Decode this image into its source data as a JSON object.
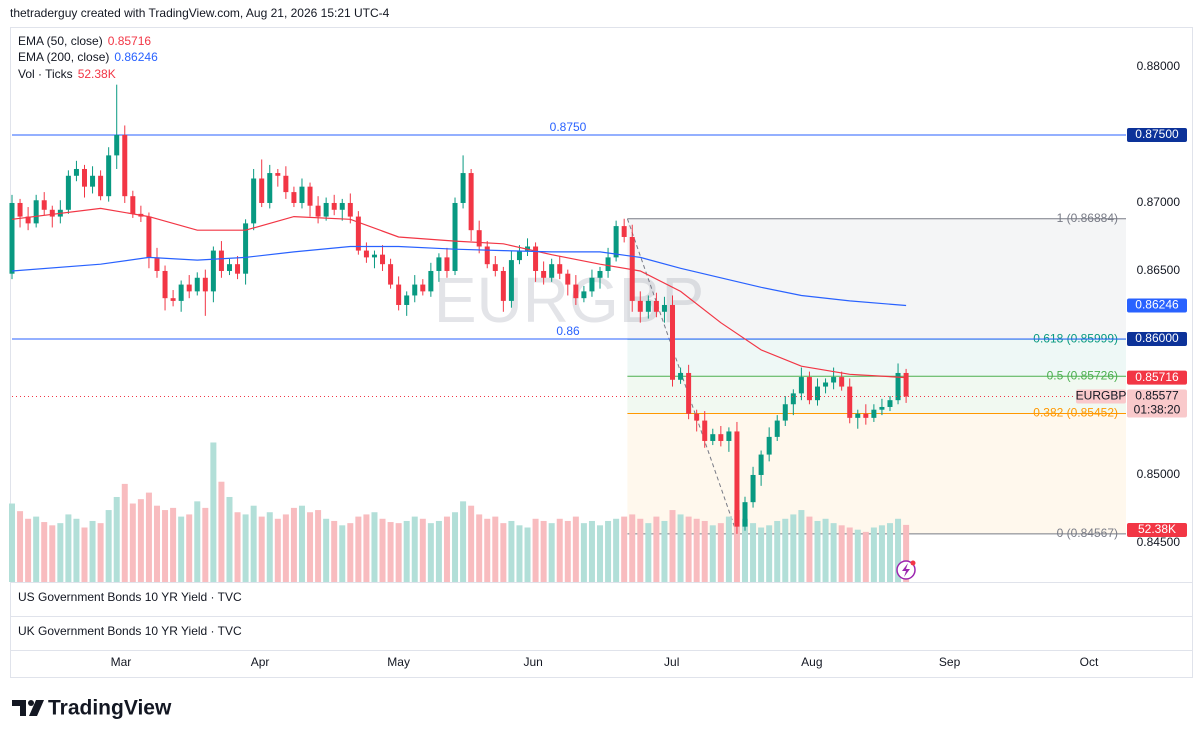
{
  "header": {
    "text": "thetraderguy created with TradingView.com, Aug 21, 2026 15:21 UTC-4"
  },
  "chart_data": {
    "type": "candlestick",
    "symbol": "EURGBP",
    "countdown": "01:38:20",
    "up_color": "#089981",
    "down_color": "#f23645",
    "xlim": [
      0,
      138.3
    ],
    "xticks": [
      {
        "value": 13.53,
        "label": "Mar"
      },
      {
        "value": 30.8,
        "label": "Apr"
      },
      {
        "value": 48.0,
        "label": "May"
      },
      {
        "value": 64.7,
        "label": "Jun"
      },
      {
        "value": 81.9,
        "label": "Jul"
      },
      {
        "value": 99.3,
        "label": "Aug"
      },
      {
        "value": 116.4,
        "label": "Sep"
      },
      {
        "value": 133.7,
        "label": "Oct"
      }
    ],
    "ylim": [
      0.84213,
      0.88294
    ],
    "yticks": [
      {
        "value": 0.88,
        "label": "0.88000"
      },
      {
        "value": 0.87,
        "label": "0.87000"
      },
      {
        "value": 0.865,
        "label": "0.86500"
      },
      {
        "value": 0.85,
        "label": "0.85000"
      },
      {
        "value": 0.845,
        "label": "0.84500"
      }
    ],
    "open": [
      0.8648,
      0.87,
      0.869,
      0.8685,
      0.8702,
      0.8695,
      0.869,
      0.8695,
      0.872,
      0.8725,
      0.8712,
      0.872,
      0.8705,
      0.8735,
      0.875,
      0.8705,
      0.8692,
      0.869,
      0.866,
      0.865,
      0.863,
      0.8628,
      0.864,
      0.8635,
      0.8645,
      0.8635,
      0.8665,
      0.865,
      0.8655,
      0.8648,
      0.8685,
      0.8718,
      0.87,
      0.8722,
      0.872,
      0.8708,
      0.87,
      0.8712,
      0.8698,
      0.869,
      0.87,
      0.8695,
      0.87,
      0.869,
      0.8665,
      0.866,
      0.8662,
      0.8655,
      0.864,
      0.8625,
      0.8632,
      0.864,
      0.8635,
      0.865,
      0.866,
      0.865,
      0.87,
      0.8722,
      0.868,
      0.8668,
      0.8655,
      0.865,
      0.8628,
      0.8658,
      0.8665,
      0.8668,
      0.865,
      0.8645,
      0.8655,
      0.8648,
      0.864,
      0.863,
      0.8635,
      0.8645,
      0.865,
      0.866,
      0.8683,
      0.8675,
      0.8628,
      0.862,
      0.8628,
      0.862,
      0.8625,
      0.857,
      0.8575,
      0.8545,
      0.854,
      0.8525,
      0.853,
      0.8525,
      0.8532,
      0.8462,
      0.848,
      0.85,
      0.8515,
      0.8528,
      0.854,
      0.8552,
      0.856,
      0.8572,
      0.8555,
      0.8565,
      0.8568,
      0.8572,
      0.8565,
      0.8542,
      0.8545,
      0.8542,
      0.8548,
      0.855,
      0.8555,
      0.8575
    ],
    "high": [
      0.8706,
      0.8703,
      0.8697,
      0.8706,
      0.8708,
      0.8698,
      0.8702,
      0.8724,
      0.8731,
      0.8728,
      0.8727,
      0.8724,
      0.8741,
      0.8787,
      0.8757,
      0.8709,
      0.8698,
      0.8693,
      0.8667,
      0.8654,
      0.8636,
      0.8643,
      0.8647,
      0.8649,
      0.8651,
      0.8668,
      0.8672,
      0.8659,
      0.8661,
      0.8688,
      0.8725,
      0.8732,
      0.8728,
      0.8725,
      0.8727,
      0.8712,
      0.8718,
      0.8715,
      0.8705,
      0.8704,
      0.8706,
      0.8703,
      0.8707,
      0.8694,
      0.8671,
      0.8665,
      0.8669,
      0.8659,
      0.8646,
      0.8635,
      0.8647,
      0.8644,
      0.8656,
      0.8663,
      0.8667,
      0.8704,
      0.8735,
      0.8725,
      0.8687,
      0.8672,
      0.8661,
      0.8653,
      0.8665,
      0.8669,
      0.8674,
      0.8671,
      0.8657,
      0.8659,
      0.8661,
      0.8651,
      0.8647,
      0.8639,
      0.8651,
      0.8653,
      0.8667,
      0.8687,
      0.86884,
      0.8684,
      0.8635,
      0.8632,
      0.8634,
      0.8631,
      0.8632,
      0.8579,
      0.8581,
      0.8548,
      0.8547,
      0.8534,
      0.8536,
      0.8535,
      0.8539,
      0.8484,
      0.8506,
      0.8518,
      0.8535,
      0.8544,
      0.8558,
      0.8563,
      0.8579,
      0.8576,
      0.8571,
      0.8571,
      0.8579,
      0.8576,
      0.8571,
      0.8548,
      0.8552,
      0.8552,
      0.8556,
      0.8558,
      0.8582,
      0.8578
    ],
    "low": [
      0.8644,
      0.8682,
      0.868,
      0.8682,
      0.8691,
      0.8682,
      0.8685,
      0.8692,
      0.8716,
      0.8704,
      0.8707,
      0.8702,
      0.8701,
      0.8725,
      0.87,
      0.8689,
      0.8686,
      0.8652,
      0.8645,
      0.8621,
      0.8624,
      0.862,
      0.863,
      0.8632,
      0.8617,
      0.8627,
      0.8645,
      0.8647,
      0.8644,
      0.864,
      0.868,
      0.8697,
      0.8696,
      0.8712,
      0.8703,
      0.8697,
      0.8696,
      0.869,
      0.8685,
      0.8687,
      0.8691,
      0.8687,
      0.8685,
      0.8662,
      0.8656,
      0.8652,
      0.865,
      0.8637,
      0.8621,
      0.8617,
      0.8627,
      0.8632,
      0.8631,
      0.8642,
      0.8645,
      0.8647,
      0.8696,
      0.8672,
      0.8663,
      0.8652,
      0.8646,
      0.862,
      0.8623,
      0.8655,
      0.8661,
      0.8642,
      0.864,
      0.8642,
      0.8644,
      0.8632,
      0.8625,
      0.8627,
      0.8631,
      0.8637,
      0.8645,
      0.8657,
      0.8671,
      0.862,
      0.8612,
      0.8615,
      0.8616,
      0.8612,
      0.8565,
      0.8567,
      0.8541,
      0.8532,
      0.852,
      0.8522,
      0.8521,
      0.8517,
      0.84567,
      0.8459,
      0.8476,
      0.8492,
      0.851,
      0.8525,
      0.8536,
      0.8544,
      0.8555,
      0.8552,
      0.8551,
      0.856,
      0.8563,
      0.8562,
      0.8538,
      0.8534,
      0.8537,
      0.8539,
      0.8544,
      0.8547,
      0.8552,
      0.8553
    ],
    "close": [
      0.87,
      0.869,
      0.8685,
      0.8702,
      0.8695,
      0.869,
      0.8695,
      0.872,
      0.8725,
      0.8712,
      0.872,
      0.8705,
      0.8735,
      0.875,
      0.8705,
      0.8692,
      0.869,
      0.866,
      0.865,
      0.863,
      0.8628,
      0.864,
      0.8635,
      0.8645,
      0.8635,
      0.8665,
      0.865,
      0.8655,
      0.8648,
      0.8685,
      0.8718,
      0.87,
      0.8722,
      0.872,
      0.8708,
      0.87,
      0.8712,
      0.8698,
      0.869,
      0.87,
      0.8695,
      0.87,
      0.869,
      0.8665,
      0.866,
      0.8662,
      0.8655,
      0.864,
      0.8625,
      0.8632,
      0.864,
      0.8635,
      0.865,
      0.866,
      0.865,
      0.87,
      0.8722,
      0.868,
      0.8668,
      0.8655,
      0.865,
      0.8628,
      0.8658,
      0.8665,
      0.8668,
      0.865,
      0.8645,
      0.8655,
      0.8648,
      0.864,
      0.863,
      0.8635,
      0.8645,
      0.865,
      0.866,
      0.8683,
      0.8675,
      0.8628,
      0.862,
      0.8628,
      0.862,
      0.8625,
      0.857,
      0.8575,
      0.8545,
      0.854,
      0.8525,
      0.853,
      0.8525,
      0.8532,
      0.8462,
      0.848,
      0.85,
      0.8515,
      0.8528,
      0.854,
      0.8552,
      0.856,
      0.8572,
      0.8555,
      0.8565,
      0.8568,
      0.8572,
      0.8565,
      0.8542,
      0.8545,
      0.8542,
      0.8548,
      0.855,
      0.8555,
      0.8575,
      0.85577
    ],
    "volume": {
      "name": "Vol · Ticks",
      "up_color": "#b2dfd8",
      "down_color": "#f8bcbf",
      "box_color": "#f23645",
      "value_label": "52.38K",
      "values": [
        72000,
        65000,
        58000,
        60000,
        55000,
        52000,
        54000,
        62000,
        58000,
        50000,
        56000,
        54000,
        66000,
        78000,
        90000,
        72000,
        76000,
        82000,
        70000,
        66000,
        68000,
        60000,
        62000,
        74000,
        68000,
        128000,
        92000,
        78000,
        64000,
        62000,
        70000,
        60000,
        64000,
        58000,
        62000,
        68000,
        70000,
        64000,
        66000,
        58000,
        56000,
        52000,
        54000,
        60000,
        62000,
        64000,
        58000,
        55000,
        54000,
        56000,
        60000,
        58000,
        54000,
        56000,
        60000,
        64000,
        74000,
        70000,
        62000,
        58000,
        60000,
        54000,
        56000,
        52000,
        50000,
        58000,
        56000,
        54000,
        58000,
        56000,
        60000,
        54000,
        56000,
        52000,
        56000,
        58000,
        60000,
        62000,
        58000,
        54000,
        60000,
        56000,
        66000,
        62000,
        60000,
        58000,
        56000,
        52000,
        54000,
        60000,
        66000,
        58000,
        54000,
        50000,
        52000,
        56000,
        58000,
        62000,
        66000,
        60000,
        56000,
        58000,
        54000,
        52000,
        50000,
        48000,
        46000,
        50000,
        52000,
        54000,
        58000,
        52380
      ]
    },
    "series": [
      {
        "name": "EMA (50, close)",
        "color": "#f23645",
        "last": 0.85716,
        "x": [
          0,
          11,
          17,
          23,
          29,
          35,
          42,
          48,
          55,
          61,
          67,
          73,
          78,
          83,
          88,
          93,
          98,
          104,
          111
        ],
        "values": [
          0.8688,
          0.8696,
          0.869,
          0.868,
          0.868,
          0.869,
          0.8688,
          0.8675,
          0.8672,
          0.867,
          0.8662,
          0.8655,
          0.865,
          0.8635,
          0.8612,
          0.8592,
          0.858,
          0.8574,
          0.85716
        ]
      },
      {
        "name": "EMA (200, close)",
        "color": "#2962ff",
        "last": 0.86246,
        "x": [
          0,
          11,
          17,
          23,
          29,
          35,
          42,
          48,
          55,
          61,
          67,
          73,
          78,
          83,
          88,
          93,
          98,
          104,
          111
        ],
        "values": [
          0.865,
          0.8655,
          0.866,
          0.8658,
          0.866,
          0.8664,
          0.8668,
          0.8668,
          0.8666,
          0.8665,
          0.8664,
          0.8664,
          0.866,
          0.8652,
          0.8645,
          0.8638,
          0.8632,
          0.8628,
          0.86246
        ]
      }
    ],
    "hlines": [
      {
        "value": 0.875,
        "label": "0.8750",
        "axis_label": "0.87500",
        "color": "#2962ff",
        "box_color": "#0c3299"
      },
      {
        "value": 0.86,
        "label": "0.86",
        "axis_label": "0.86000",
        "color": "#2962ff",
        "box_color": "#0c3299"
      }
    ],
    "fib": {
      "anchors_x": [
        76.4,
        90
      ],
      "levels": [
        {
          "value": 0.86884,
          "label": "1 (0.86884)",
          "color": "#787b86",
          "fill": "rgba(120,123,134,0.08)"
        },
        {
          "value": 0.85999,
          "label": "0.618 (0.85999)",
          "color": "#089981",
          "fill": "rgba(8,153,129,0.07)"
        },
        {
          "value": 0.85726,
          "label": "0.5 (0.85726)",
          "color": "#4caf50",
          "fill": "rgba(76,175,80,0.08)"
        },
        {
          "value": 0.85452,
          "label": "0.382 (0.85452)",
          "color": "#ff9800",
          "fill": "rgba(255,152,0,0.07)"
        },
        {
          "value": 0.84567,
          "label": "0 (0.84567)",
          "color": "#787b86"
        }
      ]
    },
    "panes": [
      "US Government Bonds 10 YR Yield · TVC",
      "UK Government Bonds 10 YR Yield · TVC"
    ]
  },
  "footer": {
    "logo_text": "TradingView"
  }
}
